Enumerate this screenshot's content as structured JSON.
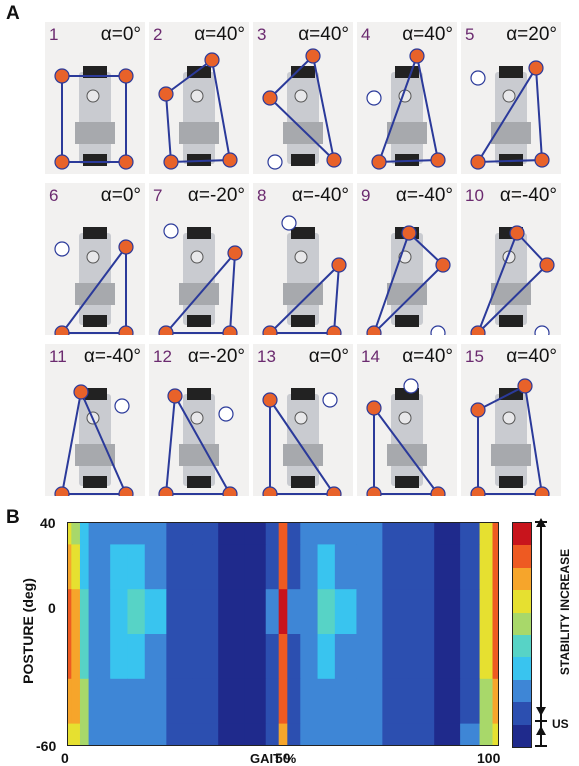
{
  "panel_a": {
    "letter": "A",
    "frames": [
      {
        "num": "1",
        "alpha": "α=0°"
      },
      {
        "num": "2",
        "alpha": "α=40°"
      },
      {
        "num": "3",
        "alpha": "α=40°"
      },
      {
        "num": "4",
        "alpha": "α=40°"
      },
      {
        "num": "5",
        "alpha": "α=20°"
      },
      {
        "num": "6",
        "alpha": "α=0°"
      },
      {
        "num": "7",
        "alpha": "α=-20°"
      },
      {
        "num": "8",
        "alpha": "α=-40°"
      },
      {
        "num": "9",
        "alpha": "α=-40°"
      },
      {
        "num": "10",
        "alpha": "α=-40°"
      },
      {
        "num": "11",
        "alpha": "α=-40°"
      },
      {
        "num": "12",
        "alpha": "α=-20°"
      },
      {
        "num": "13",
        "alpha": "α=0°"
      },
      {
        "num": "14",
        "alpha": "α=40°"
      },
      {
        "num": "15",
        "alpha": "α=40°"
      }
    ],
    "colors": {
      "foot_contact": "#e8622a",
      "foot_lifted": "#ffffff",
      "support_polygon": "#2b3a9a"
    }
  },
  "panel_b": {
    "letter": "B",
    "ylabel": "POSTURE (deg)",
    "xlabel": "GAIT %",
    "yticks": [
      "40",
      "0",
      "-60"
    ],
    "xticks": [
      "0",
      "50",
      "100"
    ],
    "colorbar_label": "STABILITY INCREASE",
    "colorbar_low_label": "US"
  },
  "chart_data": {
    "type": "heatmap",
    "title": "",
    "xlabel": "GAIT %",
    "ylabel": "POSTURE (deg)",
    "xlim": [
      0,
      100
    ],
    "ylim": [
      -60,
      40
    ],
    "colorbar": {
      "label": "STABILITY INCREASE",
      "low_label": "US",
      "levels": 10
    },
    "y": [
      40,
      20,
      0,
      -20,
      -40,
      -60
    ],
    "x": [
      0,
      2,
      4,
      6,
      8,
      12,
      16,
      20,
      26,
      32,
      38,
      44,
      48,
      50,
      52,
      56,
      60,
      64,
      70,
      76,
      82,
      88,
      94,
      97,
      100
    ],
    "z": [
      [
        6,
        5,
        3,
        2,
        2,
        2,
        2,
        2,
        1,
        1,
        0,
        0,
        1,
        8,
        1,
        2,
        2,
        2,
        2,
        1,
        1,
        0,
        1,
        6,
        8
      ],
      [
        7,
        6,
        3,
        2,
        2,
        3,
        3,
        2,
        1,
        1,
        0,
        0,
        1,
        8,
        1,
        2,
        3,
        2,
        2,
        1,
        1,
        0,
        1,
        6,
        8
      ],
      [
        8,
        7,
        4,
        2,
        2,
        3,
        4,
        3,
        1,
        1,
        0,
        0,
        2,
        9,
        2,
        2,
        4,
        3,
        2,
        1,
        1,
        0,
        1,
        6,
        8
      ],
      [
        8,
        7,
        4,
        2,
        2,
        3,
        3,
        2,
        1,
        1,
        0,
        0,
        1,
        8,
        1,
        2,
        3,
        2,
        2,
        1,
        1,
        0,
        1,
        6,
        8
      ],
      [
        7,
        7,
        5,
        2,
        2,
        2,
        2,
        2,
        1,
        1,
        0,
        0,
        1,
        8,
        1,
        2,
        2,
        2,
        2,
        1,
        1,
        0,
        1,
        5,
        7
      ],
      [
        6,
        6,
        5,
        2,
        2,
        2,
        2,
        2,
        1,
        1,
        0,
        0,
        1,
        7,
        1,
        2,
        2,
        2,
        2,
        1,
        1,
        0,
        2,
        5,
        6
      ]
    ]
  }
}
